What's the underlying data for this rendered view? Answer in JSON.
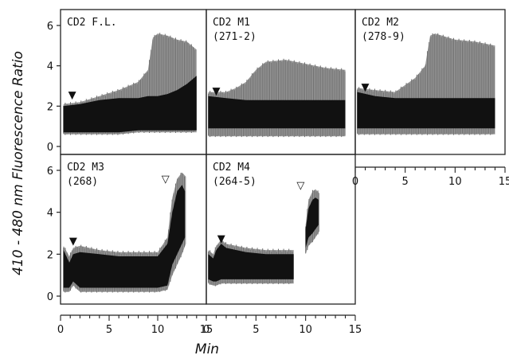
{
  "chart_data": {
    "type": "area",
    "ylabel": "410 - 480 nm Fluorescence Ratio",
    "xlabel": "Min",
    "ylim": [
      0,
      6
    ],
    "xlim": [
      0,
      15
    ],
    "yticks": [
      "0",
      "2",
      "4",
      "6"
    ],
    "xticks": [
      "0",
      "5",
      "10",
      "15"
    ],
    "markers": {
      "filled": "▼",
      "open": "▽"
    },
    "panels": [
      {
        "id": "fl",
        "title": "CD2 F.L.",
        "subtitle": "",
        "filled_arrow": {
          "x": 1.2,
          "y": 2.3
        },
        "open_arrow": null,
        "black_band": {
          "x": [
            0.3,
            2,
            4,
            6,
            8,
            9,
            10,
            11,
            12,
            13,
            14
          ],
          "lower": [
            0.7,
            0.7,
            0.7,
            0.7,
            0.8,
            0.8,
            0.8,
            0.8,
            0.8,
            0.8,
            0.8
          ],
          "upper": [
            2.0,
            2.1,
            2.3,
            2.4,
            2.4,
            2.5,
            2.5,
            2.6,
            2.8,
            3.1,
            3.5
          ]
        },
        "grey_band": {
          "x": [
            0.3,
            2,
            4,
            6,
            8,
            9,
            9.5,
            10,
            11,
            12,
            13,
            14
          ],
          "lower": [
            0.6,
            0.6,
            0.6,
            0.6,
            0.7,
            0.7,
            0.7,
            0.7,
            0.7,
            0.7,
            0.7,
            0.7
          ],
          "upper": [
            2.1,
            2.2,
            2.5,
            2.8,
            3.2,
            3.8,
            5.4,
            5.6,
            5.5,
            5.3,
            5.2,
            4.8
          ]
        }
      },
      {
        "id": "m1",
        "title": "CD2 M1",
        "subtitle": "(271-2)",
        "filled_arrow": {
          "x": 1.0,
          "y": 2.5
        },
        "open_arrow": null,
        "black_band": {
          "x": [
            0.2,
            2,
            4,
            6,
            8,
            10,
            12,
            14
          ],
          "lower": [
            0.9,
            0.9,
            0.9,
            0.9,
            0.9,
            0.9,
            0.9,
            0.9
          ],
          "upper": [
            2.5,
            2.4,
            2.3,
            2.3,
            2.3,
            2.3,
            2.3,
            2.3
          ]
        },
        "grey_band": {
          "x": [
            0.2,
            2,
            3,
            4,
            5,
            6,
            8,
            10,
            12,
            14
          ],
          "lower": [
            0.5,
            0.5,
            0.5,
            0.5,
            0.5,
            0.5,
            0.5,
            0.5,
            0.5,
            0.5
          ],
          "upper": [
            2.7,
            2.7,
            2.9,
            3.2,
            3.8,
            4.2,
            4.3,
            4.1,
            3.9,
            3.8
          ]
        }
      },
      {
        "id": "m2",
        "title": "CD2 M2",
        "subtitle": "(278-9)",
        "filled_arrow": {
          "x": 1.0,
          "y": 2.7
        },
        "open_arrow": null,
        "black_band": {
          "x": [
            0.2,
            2,
            4,
            6,
            8,
            10,
            12,
            14
          ],
          "lower": [
            0.9,
            0.9,
            0.9,
            0.9,
            0.9,
            0.9,
            0.9,
            0.9
          ],
          "upper": [
            2.7,
            2.5,
            2.4,
            2.4,
            2.4,
            2.4,
            2.4,
            2.4
          ]
        },
        "grey_band": {
          "x": [
            0.2,
            2,
            4,
            6,
            7,
            7.5,
            8,
            10,
            12,
            14
          ],
          "lower": [
            0.6,
            0.6,
            0.6,
            0.6,
            0.6,
            0.6,
            0.6,
            0.6,
            0.6,
            0.6
          ],
          "upper": [
            2.9,
            2.8,
            2.7,
            3.4,
            4.0,
            5.5,
            5.6,
            5.3,
            5.2,
            5.0
          ]
        }
      },
      {
        "id": "m3",
        "title": "CD2 M3",
        "subtitle": "(268)",
        "filled_arrow": {
          "x": 1.3,
          "y": 2.4
        },
        "open_arrow": {
          "x": 10.8,
          "y": 5.5
        },
        "black_band": {
          "x": [
            0.3,
            0.9,
            1.3,
            2,
            4,
            6,
            8,
            10,
            11,
            11.5,
            12,
            12.5,
            12.8
          ],
          "lower": [
            0.4,
            0.4,
            0.7,
            0.4,
            0.4,
            0.4,
            0.4,
            0.4,
            0.5,
            1.5,
            2.0,
            2.5,
            2.8
          ],
          "upper": [
            2.2,
            1.6,
            2.0,
            2.1,
            2.0,
            1.9,
            1.9,
            1.9,
            2.5,
            4.0,
            5.0,
            5.3,
            5.0
          ]
        },
        "grey_band": {
          "x": [
            0.3,
            0.9,
            1.3,
            2,
            4,
            6,
            8,
            10,
            11,
            11.5,
            12,
            12.5,
            12.9
          ],
          "lower": [
            0.2,
            0.2,
            0.5,
            0.2,
            0.2,
            0.2,
            0.2,
            0.2,
            0.3,
            1.0,
            1.5,
            2.0,
            2.5
          ],
          "upper": [
            2.4,
            1.9,
            2.3,
            2.4,
            2.2,
            2.1,
            2.1,
            2.1,
            2.8,
            4.7,
            5.6,
            5.9,
            5.7
          ]
        }
      },
      {
        "id": "m4",
        "title": "CD2 M4",
        "subtitle": "(264-5)",
        "filled_arrow": {
          "x": 1.5,
          "y": 2.5
        },
        "open_arrow": {
          "x": 9.5,
          "y": 5.2
        },
        "black_band": {
          "x": [
            0.2,
            0.7,
            1.0,
            1.5,
            2,
            4,
            6,
            8,
            8.8
          ],
          "lower": [
            0.8,
            0.7,
            0.7,
            0.8,
            0.8,
            0.8,
            0.8,
            0.8,
            0.8
          ],
          "upper": [
            2.0,
            1.8,
            2.2,
            2.5,
            2.3,
            2.1,
            2.0,
            2.0,
            2.0
          ]
        },
        "grey_band": {
          "x": [
            0.2,
            0.7,
            1.0,
            1.5,
            2,
            4,
            6,
            8,
            8.8
          ],
          "lower": [
            0.6,
            0.5,
            0.5,
            0.6,
            0.6,
            0.6,
            0.6,
            0.6,
            0.6
          ],
          "upper": [
            2.2,
            2.0,
            2.4,
            2.7,
            2.5,
            2.3,
            2.2,
            2.2,
            2.2
          ]
        },
        "black_band_2": {
          "x": [
            10.0,
            10.3,
            10.7,
            11.0,
            11.3
          ],
          "lower": [
            2.3,
            2.8,
            3.0,
            3.2,
            3.4
          ],
          "upper": [
            3.2,
            4.2,
            4.6,
            4.7,
            4.6
          ]
        },
        "grey_band_2": {
          "x": [
            10.0,
            10.3,
            10.7,
            11.0,
            11.4
          ],
          "lower": [
            2.0,
            2.4,
            2.6,
            2.8,
            3.1
          ],
          "upper": [
            3.4,
            4.6,
            5.0,
            5.1,
            4.9
          ]
        }
      }
    ]
  }
}
